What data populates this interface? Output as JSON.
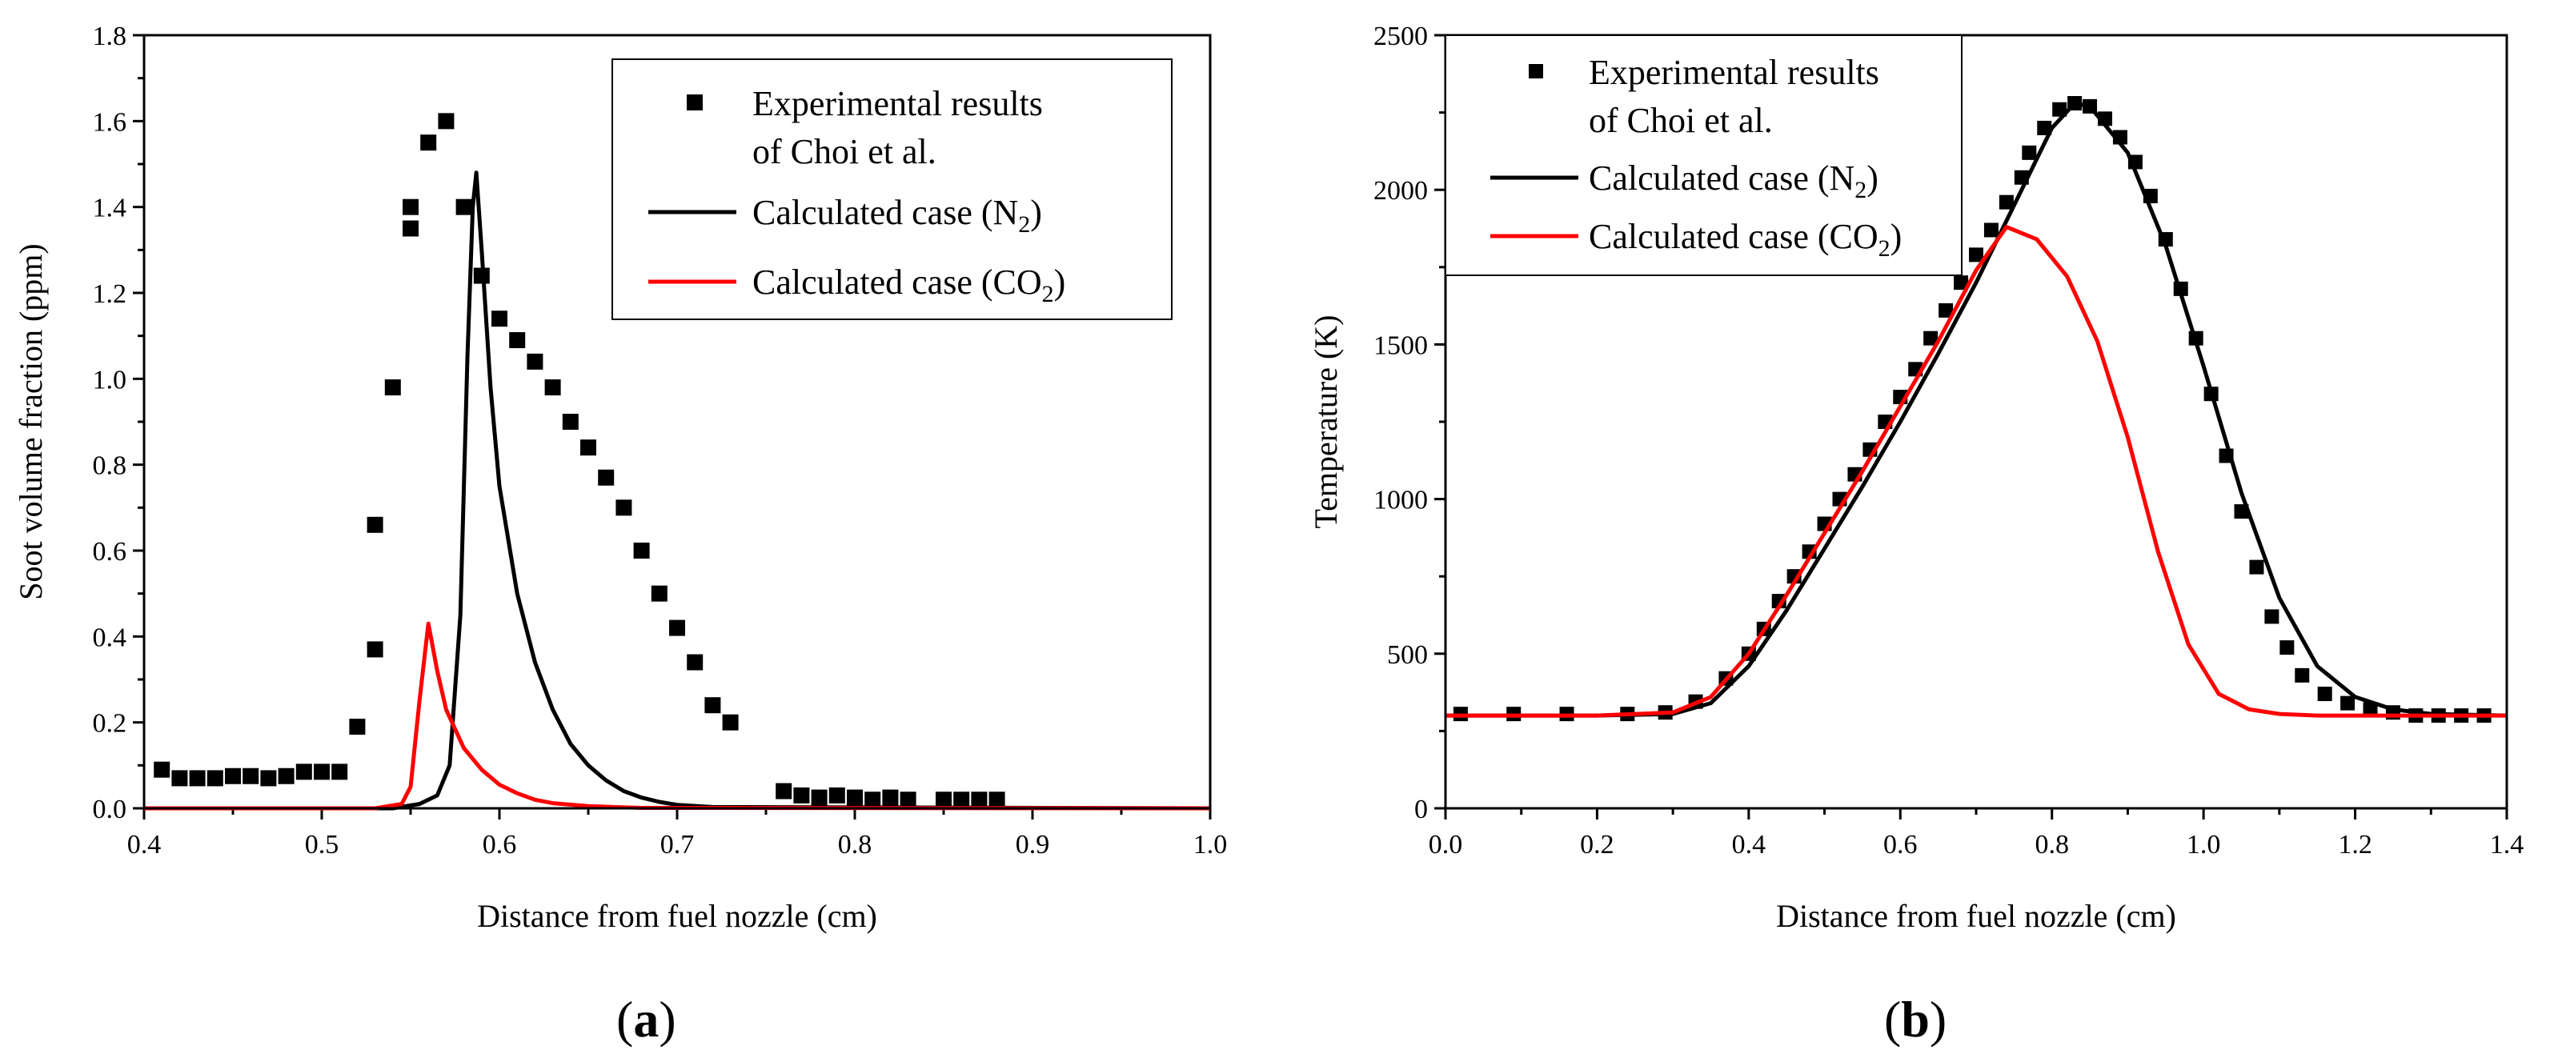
{
  "figure": {
    "panel_a_label_open": "(",
    "panel_a_label_letter": "a",
    "panel_a_label_close": ")",
    "panel_b_label_open": "(",
    "panel_b_label_letter": "b",
    "panel_b_label_close": ")"
  },
  "colors": {
    "experimental": "#000000",
    "n2": "#000000",
    "co2": "#ff0000"
  },
  "chart_data": [
    {
      "type": "scatter",
      "xlabel": "Distance from fuel nozzle (cm)",
      "ylabel": "Soot volume fraction (ppm)",
      "xlim": [
        0.4,
        1.0
      ],
      "ylim": [
        0.0,
        1.8
      ],
      "xticks": [
        "0.4",
        "0.5",
        "0.6",
        "0.7",
        "0.8",
        "0.9",
        "1.0"
      ],
      "yticks": [
        "0.0",
        "0.2",
        "0.4",
        "0.6",
        "0.8",
        "1.0",
        "1.2",
        "1.4",
        "1.6",
        "1.8"
      ],
      "legend": {
        "position": "top-right",
        "exp_line1": "Experimental results",
        "exp_line2": "of Choi et al.",
        "n2_prefix": "Calculated case (N",
        "n2_sub": "2",
        "n2_suffix": ")",
        "co2_prefix": "Calculated case (CO",
        "co2_sub": "2",
        "co2_suffix": ")"
      },
      "series": [
        {
          "name": "Experimental results of Choi et al.",
          "style": "markers",
          "x": [
            0.41,
            0.42,
            0.43,
            0.44,
            0.45,
            0.46,
            0.47,
            0.48,
            0.49,
            0.5,
            0.51,
            0.52,
            0.53,
            0.53,
            0.54,
            0.55,
            0.55,
            0.56,
            0.57,
            0.58,
            0.59,
            0.6,
            0.61,
            0.62,
            0.63,
            0.64,
            0.65,
            0.66,
            0.67,
            0.68,
            0.69,
            0.7,
            0.71,
            0.72,
            0.73,
            0.76,
            0.77,
            0.78,
            0.79,
            0.8,
            0.81,
            0.82,
            0.83,
            0.85,
            0.86,
            0.87,
            0.88
          ],
          "y": [
            0.09,
            0.07,
            0.07,
            0.07,
            0.075,
            0.075,
            0.07,
            0.075,
            0.085,
            0.085,
            0.085,
            0.19,
            0.37,
            0.66,
            0.98,
            1.35,
            1.4,
            1.55,
            1.6,
            1.4,
            1.24,
            1.14,
            1.09,
            1.04,
            0.98,
            0.9,
            0.84,
            0.77,
            0.7,
            0.6,
            0.5,
            0.42,
            0.34,
            0.24,
            0.2,
            0.04,
            0.03,
            0.025,
            0.03,
            0.025,
            0.02,
            0.025,
            0.02,
            0.02,
            0.02,
            0.02,
            0.02
          ]
        },
        {
          "name": "Calculated case (N2)",
          "style": "line",
          "x": [
            0.4,
            0.54,
            0.555,
            0.565,
            0.572,
            0.578,
            0.582,
            0.585,
            0.587,
            0.59,
            0.595,
            0.6,
            0.61,
            0.62,
            0.63,
            0.64,
            0.65,
            0.66,
            0.67,
            0.68,
            0.69,
            0.7,
            0.72,
            1.0
          ],
          "y": [
            0.0,
            0.0,
            0.01,
            0.03,
            0.1,
            0.45,
            1.05,
            1.4,
            1.48,
            1.3,
            0.98,
            0.75,
            0.5,
            0.34,
            0.23,
            0.15,
            0.1,
            0.065,
            0.04,
            0.025,
            0.015,
            0.008,
            0.003,
            0.0
          ]
        },
        {
          "name": "Calculated case (CO2)",
          "style": "line",
          "x": [
            0.4,
            0.53,
            0.545,
            0.55,
            0.555,
            0.56,
            0.565,
            0.57,
            0.58,
            0.59,
            0.6,
            0.61,
            0.62,
            0.63,
            0.65,
            0.68,
            1.0
          ],
          "y": [
            0.0,
            0.0,
            0.01,
            0.05,
            0.25,
            0.43,
            0.32,
            0.23,
            0.14,
            0.09,
            0.055,
            0.035,
            0.02,
            0.012,
            0.005,
            0.001,
            0.0
          ]
        }
      ]
    },
    {
      "type": "scatter",
      "xlabel": "Distance from fuel nozzle (cm)",
      "ylabel": "Temperature (K)",
      "xlim": [
        0.0,
        1.4
      ],
      "ylim": [
        0,
        2500
      ],
      "xticks": [
        "0.0",
        "0.2",
        "0.4",
        "0.6",
        "0.8",
        "1.0",
        "1.2",
        "1.4"
      ],
      "yticks": [
        "0",
        "500",
        "1000",
        "1500",
        "2000",
        "2500"
      ],
      "legend": {
        "position": "top-left",
        "exp_line1": "Experimental results",
        "exp_line2": "of Choi et al.",
        "n2_prefix": "Calculated case (N",
        "n2_sub": "2",
        "n2_suffix": ")",
        "co2_prefix": "Calculated case (CO",
        "co2_sub": "2",
        "co2_suffix": ")"
      },
      "series": [
        {
          "name": "Experimental results of Choi et al.",
          "style": "markers",
          "x": [
            0.02,
            0.09,
            0.16,
            0.24,
            0.29,
            0.33,
            0.37,
            0.4,
            0.42,
            0.44,
            0.46,
            0.48,
            0.5,
            0.52,
            0.54,
            0.56,
            0.58,
            0.6,
            0.62,
            0.64,
            0.66,
            0.68,
            0.7,
            0.72,
            0.74,
            0.76,
            0.77,
            0.79,
            0.81,
            0.83,
            0.85,
            0.87,
            0.89,
            0.91,
            0.93,
            0.95,
            0.97,
            0.99,
            1.01,
            1.03,
            1.05,
            1.07,
            1.09,
            1.11,
            1.13,
            1.16,
            1.19,
            1.22,
            1.25,
            1.28,
            1.31,
            1.34,
            1.37
          ],
          "y": [
            305,
            305,
            305,
            305,
            310,
            345,
            420,
            500,
            580,
            670,
            750,
            830,
            920,
            1000,
            1080,
            1160,
            1250,
            1330,
            1420,
            1520,
            1610,
            1700,
            1790,
            1870,
            1960,
            2040,
            2120,
            2200,
            2260,
            2280,
            2270,
            2230,
            2170,
            2090,
            1980,
            1840,
            1680,
            1520,
            1340,
            1140,
            960,
            780,
            620,
            520,
            430,
            370,
            340,
            320,
            310,
            300,
            300,
            300,
            300
          ]
        },
        {
          "name": "Calculated case (N2)",
          "style": "line",
          "x": [
            0.0,
            0.2,
            0.3,
            0.35,
            0.4,
            0.45,
            0.5,
            0.55,
            0.6,
            0.65,
            0.7,
            0.75,
            0.8,
            0.83,
            0.85,
            0.9,
            0.95,
            1.0,
            1.05,
            1.1,
            1.15,
            1.2,
            1.25,
            1.3,
            1.4
          ],
          "y": [
            300,
            300,
            305,
            340,
            460,
            640,
            840,
            1040,
            1250,
            1470,
            1700,
            1950,
            2200,
            2280,
            2270,
            2120,
            1820,
            1430,
            1020,
            680,
            460,
            360,
            320,
            305,
            300
          ]
        },
        {
          "name": "Calculated case (CO2)",
          "style": "line",
          "x": [
            0.0,
            0.2,
            0.3,
            0.35,
            0.4,
            0.45,
            0.5,
            0.55,
            0.6,
            0.65,
            0.7,
            0.74,
            0.78,
            0.82,
            0.86,
            0.9,
            0.94,
            0.98,
            1.02,
            1.06,
            1.1,
            1.15,
            1.2,
            1.4
          ],
          "y": [
            300,
            300,
            310,
            360,
            500,
            690,
            890,
            1090,
            1300,
            1510,
            1740,
            1880,
            1840,
            1720,
            1510,
            1200,
            830,
            530,
            370,
            320,
            305,
            300,
            300,
            300
          ]
        }
      ]
    }
  ]
}
